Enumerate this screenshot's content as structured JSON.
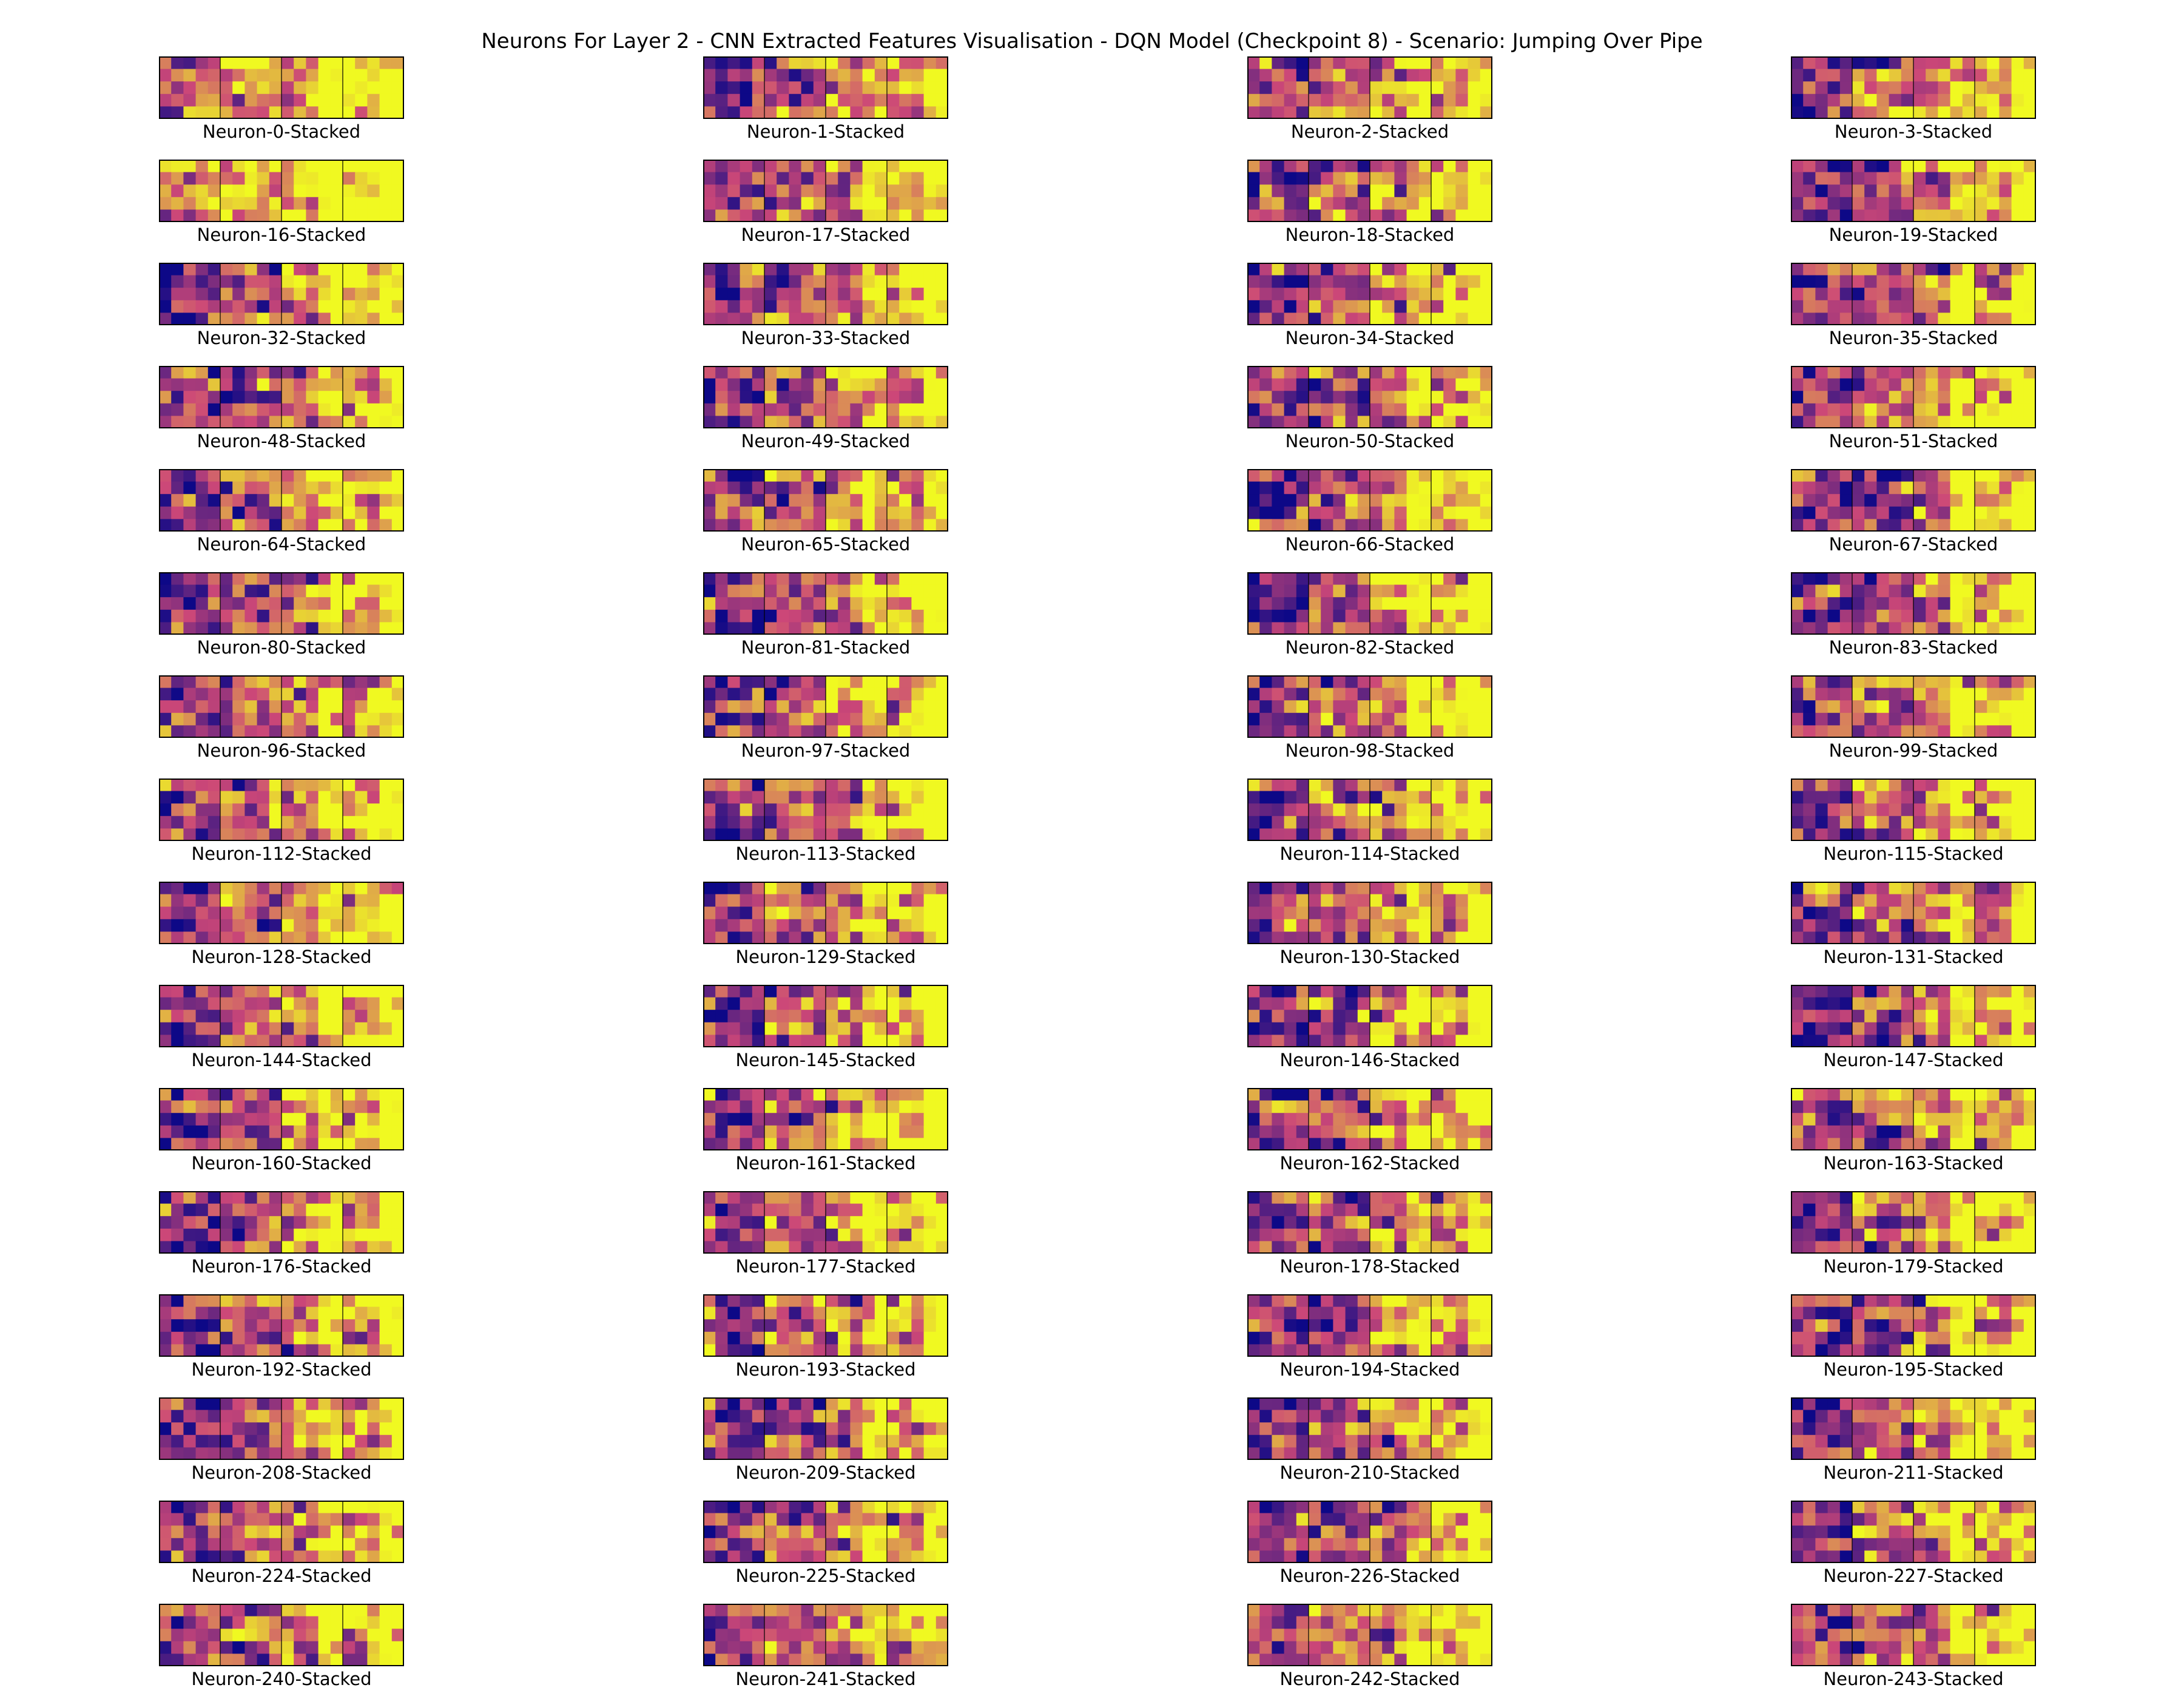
{
  "title": "Neurons For Layer 2 - CNN Extracted Features Visualisation - DQN Model (Checkpoint 8) - Scenario: Jumping Over Pipe",
  "frames_per_panel": 4,
  "colormap": "plasma",
  "colors": {
    "low": "#0d0887",
    "mid": "#cc4778",
    "high": "#f0f921",
    "frame_border": "#000000"
  },
  "panels": [
    {
      "label": "Neuron-0-Stacked",
      "neuron": 0
    },
    {
      "label": "Neuron-1-Stacked",
      "neuron": 1
    },
    {
      "label": "Neuron-2-Stacked",
      "neuron": 2
    },
    {
      "label": "Neuron-3-Stacked",
      "neuron": 3
    },
    {
      "label": "Neuron-16-Stacked",
      "neuron": 16
    },
    {
      "label": "Neuron-17-Stacked",
      "neuron": 17
    },
    {
      "label": "Neuron-18-Stacked",
      "neuron": 18
    },
    {
      "label": "Neuron-19-Stacked",
      "neuron": 19
    },
    {
      "label": "Neuron-32-Stacked",
      "neuron": 32
    },
    {
      "label": "Neuron-33-Stacked",
      "neuron": 33
    },
    {
      "label": "Neuron-34-Stacked",
      "neuron": 34
    },
    {
      "label": "Neuron-35-Stacked",
      "neuron": 35
    },
    {
      "label": "Neuron-48-Stacked",
      "neuron": 48
    },
    {
      "label": "Neuron-49-Stacked",
      "neuron": 49
    },
    {
      "label": "Neuron-50-Stacked",
      "neuron": 50
    },
    {
      "label": "Neuron-51-Stacked",
      "neuron": 51
    },
    {
      "label": "Neuron-64-Stacked",
      "neuron": 64
    },
    {
      "label": "Neuron-65-Stacked",
      "neuron": 65
    },
    {
      "label": "Neuron-66-Stacked",
      "neuron": 66
    },
    {
      "label": "Neuron-67-Stacked",
      "neuron": 67
    },
    {
      "label": "Neuron-80-Stacked",
      "neuron": 80
    },
    {
      "label": "Neuron-81-Stacked",
      "neuron": 81
    },
    {
      "label": "Neuron-82-Stacked",
      "neuron": 82
    },
    {
      "label": "Neuron-83-Stacked",
      "neuron": 83
    },
    {
      "label": "Neuron-96-Stacked",
      "neuron": 96
    },
    {
      "label": "Neuron-97-Stacked",
      "neuron": 97
    },
    {
      "label": "Neuron-98-Stacked",
      "neuron": 98
    },
    {
      "label": "Neuron-99-Stacked",
      "neuron": 99
    },
    {
      "label": "Neuron-112-Stacked",
      "neuron": 112
    },
    {
      "label": "Neuron-113-Stacked",
      "neuron": 113
    },
    {
      "label": "Neuron-114-Stacked",
      "neuron": 114
    },
    {
      "label": "Neuron-115-Stacked",
      "neuron": 115
    },
    {
      "label": "Neuron-128-Stacked",
      "neuron": 128
    },
    {
      "label": "Neuron-129-Stacked",
      "neuron": 129
    },
    {
      "label": "Neuron-130-Stacked",
      "neuron": 130
    },
    {
      "label": "Neuron-131-Stacked",
      "neuron": 131
    },
    {
      "label": "Neuron-144-Stacked",
      "neuron": 144
    },
    {
      "label": "Neuron-145-Stacked",
      "neuron": 145
    },
    {
      "label": "Neuron-146-Stacked",
      "neuron": 146
    },
    {
      "label": "Neuron-147-Stacked",
      "neuron": 147
    },
    {
      "label": "Neuron-160-Stacked",
      "neuron": 160
    },
    {
      "label": "Neuron-161-Stacked",
      "neuron": 161
    },
    {
      "label": "Neuron-162-Stacked",
      "neuron": 162
    },
    {
      "label": "Neuron-163-Stacked",
      "neuron": 163
    },
    {
      "label": "Neuron-176-Stacked",
      "neuron": 176
    },
    {
      "label": "Neuron-177-Stacked",
      "neuron": 177
    },
    {
      "label": "Neuron-178-Stacked",
      "neuron": 178
    },
    {
      "label": "Neuron-179-Stacked",
      "neuron": 179
    },
    {
      "label": "Neuron-192-Stacked",
      "neuron": 192
    },
    {
      "label": "Neuron-193-Stacked",
      "neuron": 193
    },
    {
      "label": "Neuron-194-Stacked",
      "neuron": 194
    },
    {
      "label": "Neuron-195-Stacked",
      "neuron": 195
    },
    {
      "label": "Neuron-208-Stacked",
      "neuron": 208
    },
    {
      "label": "Neuron-209-Stacked",
      "neuron": 209
    },
    {
      "label": "Neuron-210-Stacked",
      "neuron": 210
    },
    {
      "label": "Neuron-211-Stacked",
      "neuron": 211
    },
    {
      "label": "Neuron-224-Stacked",
      "neuron": 224
    },
    {
      "label": "Neuron-225-Stacked",
      "neuron": 225
    },
    {
      "label": "Neuron-226-Stacked",
      "neuron": 226
    },
    {
      "label": "Neuron-227-Stacked",
      "neuron": 227
    },
    {
      "label": "Neuron-240-Stacked",
      "neuron": 240
    },
    {
      "label": "Neuron-241-Stacked",
      "neuron": 241
    },
    {
      "label": "Neuron-242-Stacked",
      "neuron": 242
    },
    {
      "label": "Neuron-243-Stacked",
      "neuron": 243
    }
  ]
}
